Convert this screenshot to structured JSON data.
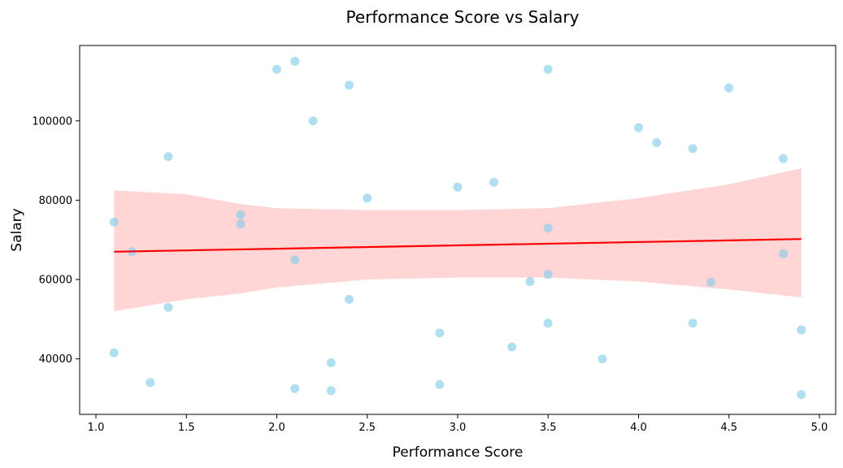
{
  "chart_data": {
    "type": "scatter",
    "title": "Performance Score vs Salary",
    "xlabel": "Performance Score",
    "ylabel": "Salary",
    "xlim": [
      0.91,
      5.09
    ],
    "ylim": [
      26000,
      119000
    ],
    "x_ticks": [
      1.0,
      1.5,
      2.0,
      2.5,
      3.0,
      3.5,
      4.0,
      4.5,
      5.0
    ],
    "x_tick_labels": [
      "1.0",
      "1.5",
      "2.0",
      "2.5",
      "3.0",
      "3.5",
      "4.0",
      "4.5",
      "5.0"
    ],
    "y_ticks": [
      40000,
      60000,
      80000,
      100000
    ],
    "y_tick_labels": [
      "40000",
      "60000",
      "80000",
      "100000"
    ],
    "grid": false,
    "point_color": "#87CEEB",
    "regression_color": "#FF0000",
    "ci_band_color": "#FFB3B3",
    "points": [
      {
        "x": 1.1,
        "y": 74500
      },
      {
        "x": 1.1,
        "y": 41500
      },
      {
        "x": 1.2,
        "y": 67000
      },
      {
        "x": 1.3,
        "y": 34000
      },
      {
        "x": 1.4,
        "y": 91000
      },
      {
        "x": 1.4,
        "y": 53000
      },
      {
        "x": 1.8,
        "y": 76300
      },
      {
        "x": 1.8,
        "y": 74000
      },
      {
        "x": 2.0,
        "y": 113000
      },
      {
        "x": 2.1,
        "y": 115000
      },
      {
        "x": 2.1,
        "y": 65000
      },
      {
        "x": 2.1,
        "y": 32500
      },
      {
        "x": 2.2,
        "y": 100000
      },
      {
        "x": 2.3,
        "y": 39000
      },
      {
        "x": 2.3,
        "y": 32000
      },
      {
        "x": 2.4,
        "y": 109000
      },
      {
        "x": 2.4,
        "y": 55000
      },
      {
        "x": 2.5,
        "y": 80500
      },
      {
        "x": 2.9,
        "y": 46500
      },
      {
        "x": 2.9,
        "y": 33500
      },
      {
        "x": 3.0,
        "y": 83300
      },
      {
        "x": 3.2,
        "y": 84500
      },
      {
        "x": 3.3,
        "y": 43000
      },
      {
        "x": 3.4,
        "y": 59500
      },
      {
        "x": 3.5,
        "y": 113000
      },
      {
        "x": 3.5,
        "y": 73000
      },
      {
        "x": 3.5,
        "y": 61300
      },
      {
        "x": 3.5,
        "y": 49000
      },
      {
        "x": 3.8,
        "y": 40000
      },
      {
        "x": 4.0,
        "y": 98300
      },
      {
        "x": 4.1,
        "y": 94500
      },
      {
        "x": 4.3,
        "y": 93000
      },
      {
        "x": 4.3,
        "y": 49000
      },
      {
        "x": 4.4,
        "y": 59300
      },
      {
        "x": 4.5,
        "y": 108300
      },
      {
        "x": 4.8,
        "y": 90500
      },
      {
        "x": 4.8,
        "y": 66500
      },
      {
        "x": 4.9,
        "y": 47300
      },
      {
        "x": 4.9,
        "y": 31000
      }
    ],
    "regression_line": {
      "x": [
        1.1,
        4.9
      ],
      "y": [
        67000,
        70200
      ]
    },
    "confidence_band": {
      "x": [
        1.1,
        1.5,
        1.8,
        2.0,
        2.5,
        3.0,
        3.5,
        4.0,
        4.5,
        4.9
      ],
      "lower": [
        52000,
        55000,
        56500,
        58000,
        60000,
        60500,
        60500,
        59500,
        57500,
        55500
      ],
      "upper": [
        82500,
        81500,
        79000,
        78000,
        77500,
        77500,
        78000,
        80500,
        84000,
        88000
      ]
    }
  }
}
